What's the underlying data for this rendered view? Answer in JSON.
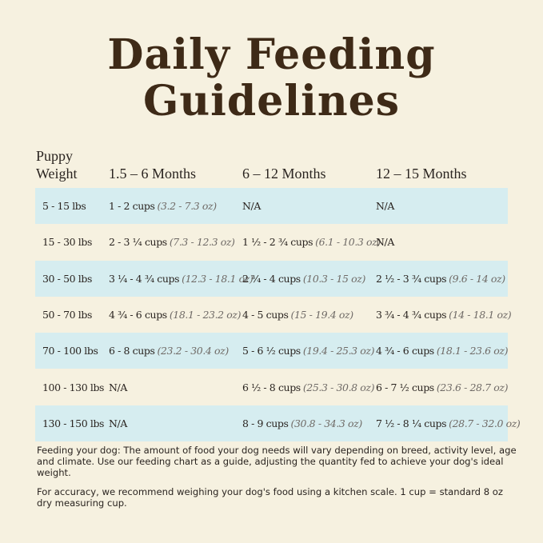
{
  "title_line1": "Daily Feeding",
  "title_line2": "Guidelines",
  "headers": {
    "weight_line1": "Puppy",
    "weight_line2": "Weight",
    "col1": "1.5 – 6 Months",
    "col2": "6 – 12 Months",
    "col3": "12 – 15 Months"
  },
  "rows": [
    {
      "weight": "5 - 15 lbs",
      "c1": {
        "cups": "1 - 2 cups",
        "oz": "(3.2 - 7.3 oz)"
      },
      "c2": {
        "cups": "N/A",
        "oz": ""
      },
      "c3": {
        "cups": "N/A",
        "oz": ""
      }
    },
    {
      "weight": "15 - 30 lbs",
      "c1": {
        "cups": "2 - 3 ¼ cups",
        "oz": "(7.3 - 12.3 oz)"
      },
      "c2": {
        "cups": "1 ½ - 2 ¾ cups",
        "oz": "(6.1 - 10.3 oz)"
      },
      "c3": {
        "cups": "N/A",
        "oz": ""
      }
    },
    {
      "weight": "30 - 50 lbs",
      "c1": {
        "cups": "3 ¼ - 4 ¾ cups",
        "oz": "(12.3 - 18.1 oz)"
      },
      "c2": {
        "cups": "2 ¾ - 4 cups",
        "oz": "(10.3 - 15 oz)"
      },
      "c3": {
        "cups": "2 ½ - 3 ¾ cups",
        "oz": "(9.6 - 14 oz)"
      }
    },
    {
      "weight": "50 - 70 lbs",
      "c1": {
        "cups": "4 ¾ - 6 cups",
        "oz": "(18.1 - 23.2 oz)"
      },
      "c2": {
        "cups": "4 - 5 cups",
        "oz": "(15 - 19.4 oz)"
      },
      "c3": {
        "cups": "3 ¾ - 4 ¾ cups",
        "oz": "(14 - 18.1 oz)"
      }
    },
    {
      "weight": "70 - 100 lbs",
      "c1": {
        "cups": "6 - 8 cups",
        "oz": "(23.2 - 30.4 oz)"
      },
      "c2": {
        "cups": "5 - 6 ½ cups",
        "oz": "(19.4 - 25.3 oz)"
      },
      "c3": {
        "cups": "4 ¾ - 6 cups",
        "oz": "(18.1 - 23.6 oz)"
      }
    },
    {
      "weight": "100 - 130 lbs",
      "c1": {
        "cups": "N/A",
        "oz": ""
      },
      "c2": {
        "cups": "6 ½ - 8 cups",
        "oz": "(25.3 - 30.8 oz)"
      },
      "c3": {
        "cups": "6 - 7 ½ cups",
        "oz": "(23.6 - 28.7 oz)"
      }
    },
    {
      "weight": "130 - 150 lbs",
      "c1": {
        "cups": "N/A",
        "oz": ""
      },
      "c2": {
        "cups": "8 - 9 cups",
        "oz": "(30.8 - 34.3 oz)"
      },
      "c3": {
        "cups": "7 ½ - 8 ¼ cups",
        "oz": "(28.7 - 32.0 oz)"
      }
    }
  ],
  "note1": "Feeding your dog: The amount of food your dog needs will vary depending on breed, activity level, age and climate. Use our feeding chart as a guide, adjusting the quantity fed to achieve your dog's ideal weight.",
  "note2": "For accuracy, we recommend weighing your dog's food using a kitchen scale. 1 cup = standard 8 oz dry measuring cup.",
  "colors": {
    "background": "#f6f1e0",
    "stripe": "#d6edf0",
    "title": "#3e2a17"
  }
}
